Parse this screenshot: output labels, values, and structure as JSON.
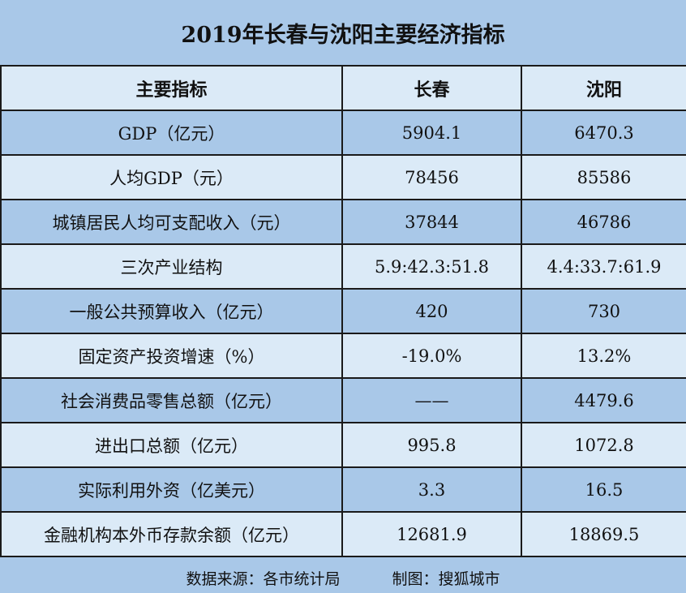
{
  "chart_data": {
    "type": "table",
    "title": "2019年长春与沈阳主要经济指标",
    "columns": [
      "主要指标",
      "长春",
      "沈阳"
    ],
    "rows": [
      [
        "GDP（亿元）",
        "5904.1",
        "6470.3"
      ],
      [
        "人均GDP（元）",
        "78456",
        "85586"
      ],
      [
        "城镇居民人均可支配收入（元）",
        "37844",
        "46786"
      ],
      [
        "三次产业结构",
        "5.9:42.3:51.8",
        "4.4:33.7:61.9"
      ],
      [
        "一般公共预算收入（亿元）",
        "420",
        "730"
      ],
      [
        "固定资产投资增速（%）",
        "-19.0%",
        "13.2%"
      ],
      [
        "社会消费品零售总额（亿元）",
        "——",
        "4479.6"
      ],
      [
        "进出口总额（亿元）",
        "995.8",
        "1072.8"
      ],
      [
        "实际利用外资（亿美元）",
        "3.3",
        "16.5"
      ],
      [
        "金融机构本外币存款余额（亿元）",
        "12681.9",
        "18869.5"
      ]
    ]
  },
  "footer": {
    "source": "数据来源：各市统计局",
    "credit": "制图：搜狐城市"
  },
  "colors": {
    "background": "#a9c8e8",
    "row_light": "#dbeaf7",
    "border": "#1a1a1a"
  }
}
